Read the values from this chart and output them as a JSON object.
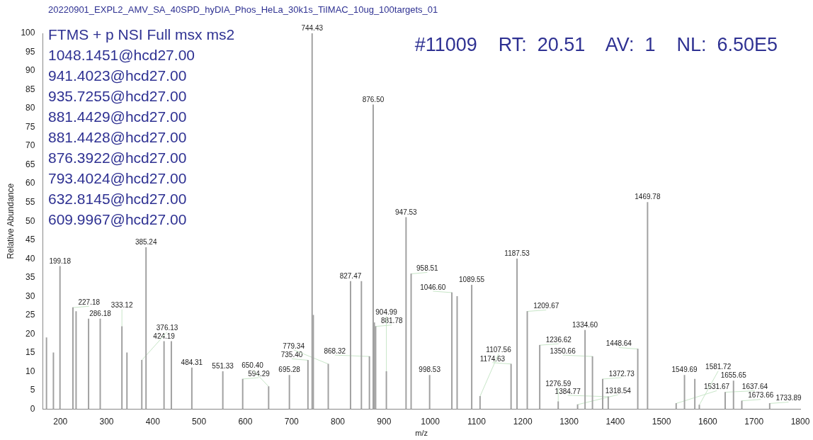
{
  "chart_data": {
    "type": "bar",
    "title": "20220901_EXPL2_AMV_SA_40SPD_hyDIA_Phos_HeLa_30k1s_TiIMAC_10ug_100targets_01",
    "xlabel": "m/z",
    "ylabel": "Relative Abundance",
    "annotations": [
      "FTMS + p NSI Full msx ms2",
      "1048.1451@hcd27.00",
      "941.4023@hcd27.00",
      "935.7255@hcd27.00",
      "881.4429@hcd27.00",
      "881.4428@hcd27.00",
      "876.3922@hcd27.00",
      "793.4024@hcd27.00",
      "632.8145@hcd27.00",
      "609.9967@hcd27.00",
      "#11009    RT:  20.51    AV:  1    NL:  6.50E5",
      {
        "text": "199.18",
        "x": 199.18,
        "y": 38
      },
      {
        "text": "227.18",
        "x": 227.18,
        "y": 27
      },
      {
        "text": "286.18",
        "x": 286.18,
        "y": 24
      },
      {
        "text": "333.12",
        "x": 333.12,
        "y": 22
      },
      {
        "text": "376.13",
        "x": 376.13,
        "y": 13
      },
      {
        "text": "385.24",
        "x": 385.24,
        "y": 43
      },
      {
        "text": "424.19",
        "x": 424.19,
        "y": 18
      },
      {
        "text": "484.31",
        "x": 484.31,
        "y": 11
      },
      {
        "text": "551.33",
        "x": 551.33,
        "y": 10
      },
      {
        "text": "594.29",
        "x": 594.29,
        "y": 8
      },
      {
        "text": "650.40",
        "x": 650.4,
        "y": 6
      },
      {
        "text": "695.28",
        "x": 695.28,
        "y": 9
      },
      {
        "text": "735.40",
        "x": 735.4,
        "y": 13
      },
      {
        "text": "744.43",
        "x": 744.43,
        "y": 100
      },
      {
        "text": "779.34",
        "x": 779.34,
        "y": 12
      },
      {
        "text": "827.47",
        "x": 827.47,
        "y": 34
      },
      {
        "text": "868.32",
        "x": 868.32,
        "y": 14
      },
      {
        "text": "876.50",
        "x": 876.5,
        "y": 81
      },
      {
        "text": "881.78",
        "x": 881.78,
        "y": 22
      },
      {
        "text": "904.99",
        "x": 904.99,
        "y": 10
      },
      {
        "text": "947.53",
        "x": 947.53,
        "y": 51
      },
      {
        "text": "958.51",
        "x": 958.51,
        "y": 36
      },
      {
        "text": "998.53",
        "x": 998.53,
        "y": 9
      },
      {
        "text": "1046.60",
        "x": 1046.6,
        "y": 31
      },
      {
        "text": "1089.55",
        "x": 1089.55,
        "y": 33
      },
      {
        "text": "1107.56",
        "x": 1107.56,
        "y": 3.4
      },
      {
        "text": "1174.63",
        "x": 1174.63,
        "y": 12
      },
      {
        "text": "1187.53",
        "x": 1187.53,
        "y": 40
      },
      {
        "text": "1209.67",
        "x": 1209.67,
        "y": 26
      },
      {
        "text": "1236.62",
        "x": 1236.62,
        "y": 17
      },
      {
        "text": "1276.59",
        "x": 1276.59,
        "y": 2
      },
      {
        "text": "1318.54",
        "x": 1318.54,
        "y": 1.2
      },
      {
        "text": "1334.60",
        "x": 1334.6,
        "y": 21
      },
      {
        "text": "1350.66",
        "x": 1350.66,
        "y": 14
      },
      {
        "text": "1372.73",
        "x": 1372.73,
        "y": 8
      },
      {
        "text": "1384.77",
        "x": 1384.77,
        "y": 3.3
      },
      {
        "text": "1448.64",
        "x": 1448.64,
        "y": 16
      },
      {
        "text": "1469.78",
        "x": 1469.78,
        "y": 55
      },
      {
        "text": "1531.67",
        "x": 1531.67,
        "y": 1.5
      },
      {
        "text": "1549.69",
        "x": 1549.69,
        "y": 9
      },
      {
        "text": "1581.72",
        "x": 1581.72,
        "y": 1.1
      },
      {
        "text": "1637.64",
        "x": 1637.64,
        "y": 4.5
      },
      {
        "text": "1655.65",
        "x": 1655.65,
        "y": 7.5
      },
      {
        "text": "1673.66",
        "x": 1673.66,
        "y": 2.2
      },
      {
        "text": "1733.89",
        "x": 1733.89,
        "y": 1.5
      }
    ],
    "x": [
      170,
      185,
      199.18,
      227.18,
      234,
      261,
      286.18,
      333.12,
      344,
      376.13,
      385.24,
      424.19,
      440,
      484.31,
      551.33,
      594.29,
      650.4,
      695.28,
      735.4,
      744.43,
      747,
      779.34,
      827.47,
      851,
      868.32,
      876.5,
      879,
      881.78,
      904.99,
      947.53,
      958.51,
      998.53,
      1046.6,
      1058,
      1089.55,
      1107.56,
      1174.63,
      1187.53,
      1209.67,
      1236.62,
      1276.59,
      1318.54,
      1334.6,
      1350.66,
      1372.73,
      1384.77,
      1448.64,
      1469.78,
      1531.67,
      1549.69,
      1572,
      1581.72,
      1637.64,
      1655.65,
      1673.66,
      1733.89
    ],
    "values": [
      19,
      15,
      38,
      27,
      26,
      24,
      24,
      22,
      15,
      13,
      43,
      18,
      18,
      11,
      10,
      8,
      6,
      9,
      13,
      100,
      25,
      12,
      34,
      34,
      14,
      81,
      23,
      22,
      10,
      51,
      36,
      9,
      31,
      30,
      33,
      3.4,
      12,
      40,
      26,
      17,
      2,
      1.2,
      21,
      14,
      8,
      3.3,
      16,
      55,
      1.5,
      9,
      8,
      1.1,
      4.5,
      7.5,
      2.2,
      1.5
    ],
    "color": "#a0a0a0",
    "xlim": [
      162,
      1800
    ],
    "xticks": [
      200,
      300,
      400,
      500,
      600,
      700,
      800,
      900,
      1000,
      1100,
      1200,
      1300,
      1400,
      1500,
      1600,
      1700,
      1800
    ],
    "ylim": [
      0,
      100
    ],
    "yticks": [
      0,
      5,
      10,
      15,
      20,
      25,
      30,
      35,
      40,
      45,
      50,
      55,
      60,
      65,
      70,
      75,
      80,
      85,
      90,
      95,
      100
    ]
  }
}
